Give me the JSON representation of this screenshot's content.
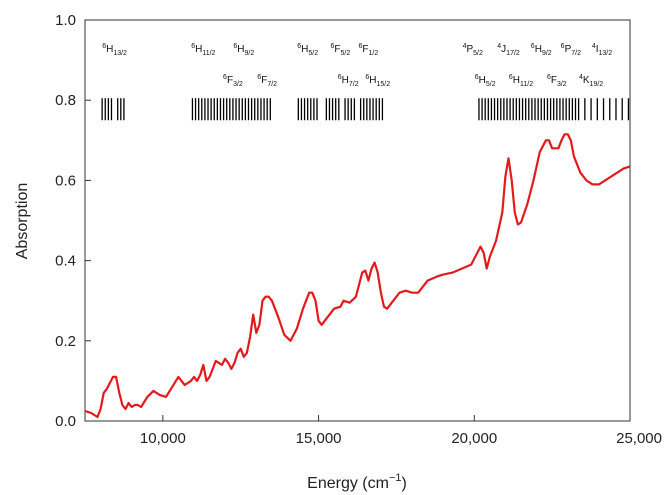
{
  "chart_data": {
    "type": "line",
    "xlabel": "Energy (cm",
    "xlabel_sup": "−1",
    "xlabel_end": ")",
    "ylabel": "Absorption",
    "xlim": [
      7500,
      25000
    ],
    "ylim": [
      0,
      1.0
    ],
    "x_ticks": [
      10000,
      15000,
      20000,
      25000
    ],
    "x_tick_labels": [
      "10,000",
      "15,000",
      "20,000",
      "25,000"
    ],
    "y_ticks": [
      0,
      0.2,
      0.4,
      0.6,
      0.8,
      1.0
    ],
    "y_tick_labels": [
      "0.0",
      "0.2",
      "0.4",
      "0.6",
      "0.8",
      "1.0"
    ],
    "line_color": "#e31a1c",
    "series": [
      {
        "x": [
          7500,
          7700,
          7900,
          8000,
          8100,
          8200,
          8300,
          8400,
          8500,
          8600,
          8700,
          8800,
          8900,
          9000,
          9100,
          9200,
          9300,
          9500,
          9700,
          9900,
          10100,
          10300,
          10500,
          10600,
          10700,
          10800,
          10900,
          11000,
          11100,
          11200,
          11300,
          11400,
          11500,
          11700,
          11900,
          12000,
          12100,
          12200,
          12300,
          12400,
          12500,
          12600,
          12700,
          12800,
          12900,
          13000,
          13100,
          13200,
          13300,
          13400,
          13500,
          13700,
          13900,
          14100,
          14300,
          14500,
          14700,
          14800,
          14900,
          15000,
          15100,
          15300,
          15500,
          15700,
          15800,
          16000,
          16200,
          16400,
          16500,
          16600,
          16700,
          16800,
          16900,
          17000,
          17100,
          17200,
          17400,
          17600,
          17800,
          18000,
          18200,
          18500,
          18800,
          19000,
          19300,
          19600,
          19900,
          20100,
          20200,
          20300,
          20400,
          20500,
          20700,
          20900,
          21000,
          21100,
          21200,
          21300,
          21400,
          21500,
          21700,
          21900,
          22100,
          22300,
          22400,
          22500,
          22700,
          22800,
          22900,
          23000,
          23100,
          23200,
          23400,
          23600,
          23800,
          24000,
          24200,
          24500,
          24800,
          25000
        ],
        "values": [
          0.025,
          0.02,
          0.01,
          0.03,
          0.07,
          0.08,
          0.095,
          0.11,
          0.11,
          0.07,
          0.04,
          0.03,
          0.045,
          0.035,
          0.04,
          0.04,
          0.035,
          0.06,
          0.075,
          0.065,
          0.06,
          0.085,
          0.11,
          0.1,
          0.09,
          0.095,
          0.1,
          0.11,
          0.1,
          0.115,
          0.14,
          0.1,
          0.11,
          0.15,
          0.14,
          0.155,
          0.145,
          0.13,
          0.145,
          0.17,
          0.18,
          0.16,
          0.17,
          0.21,
          0.265,
          0.22,
          0.24,
          0.3,
          0.31,
          0.31,
          0.3,
          0.26,
          0.215,
          0.2,
          0.23,
          0.28,
          0.32,
          0.32,
          0.3,
          0.25,
          0.24,
          0.26,
          0.28,
          0.285,
          0.3,
          0.295,
          0.31,
          0.37,
          0.375,
          0.35,
          0.38,
          0.395,
          0.37,
          0.32,
          0.285,
          0.28,
          0.3,
          0.32,
          0.325,
          0.32,
          0.32,
          0.35,
          0.36,
          0.365,
          0.37,
          0.38,
          0.39,
          0.42,
          0.435,
          0.42,
          0.38,
          0.41,
          0.45,
          0.52,
          0.61,
          0.655,
          0.6,
          0.52,
          0.49,
          0.495,
          0.54,
          0.6,
          0.67,
          0.7,
          0.7,
          0.68,
          0.68,
          0.7,
          0.715,
          0.715,
          0.7,
          0.66,
          0.62,
          0.6,
          0.59,
          0.59,
          0.6,
          0.615,
          0.63,
          0.635
        ]
      }
    ],
    "tick_band": {
      "y_range": [
        0.75,
        0.805
      ],
      "lines_x": [
        8050,
        8150,
        8250,
        8350,
        8550,
        8650,
        8750,
        10950,
        11050,
        11150,
        11250,
        11350,
        11450,
        11550,
        11650,
        11750,
        11850,
        11950,
        12050,
        12150,
        12250,
        12350,
        12450,
        12550,
        12650,
        12750,
        12850,
        12950,
        13050,
        13150,
        13250,
        13350,
        13450,
        14350,
        14450,
        14550,
        14650,
        14750,
        14850,
        14950,
        15250,
        15350,
        15450,
        15550,
        15650,
        15850,
        15950,
        16050,
        16150,
        16350,
        16450,
        16550,
        16650,
        16750,
        16850,
        16950,
        17050,
        20150,
        20250,
        20350,
        20450,
        20550,
        20650,
        20750,
        20850,
        20950,
        21050,
        21150,
        21250,
        21350,
        21450,
        21550,
        21650,
        21750,
        21850,
        21950,
        22050,
        22150,
        22250,
        22350,
        22450,
        22550,
        22650,
        22750,
        22850,
        22950,
        23050,
        23150,
        23250,
        23350,
        23550,
        23750,
        23950,
        24150,
        24350,
        24550,
        24750,
        24950
      ]
    },
    "term_labels": [
      {
        "sup": "6",
        "base": "H",
        "sub": "13/2",
        "x": 8450,
        "row": 1
      },
      {
        "sup": "6",
        "base": "H",
        "sub": "11/2",
        "x": 11300,
        "row": 1
      },
      {
        "sup": "6",
        "base": "H",
        "sub": "9/2",
        "x": 12600,
        "row": 1
      },
      {
        "sup": "6",
        "base": "F",
        "sub": "3/2",
        "x": 12250,
        "row": 2
      },
      {
        "sup": "6",
        "base": "F",
        "sub": "7/2",
        "x": 13350,
        "row": 2
      },
      {
        "sup": "6",
        "base": "H",
        "sub": "5/2",
        "x": 14650,
        "row": 1
      },
      {
        "sup": "6",
        "base": "F",
        "sub": "5/2",
        "x": 15700,
        "row": 1
      },
      {
        "sup": "6",
        "base": "F",
        "sub": "1/2",
        "x": 16600,
        "row": 1
      },
      {
        "sup": "6",
        "base": "H",
        "sub": "7/2",
        "x": 15950,
        "row": 2
      },
      {
        "sup": "6",
        "base": "H",
        "sub": "15/2",
        "x": 16900,
        "row": 2
      },
      {
        "sup": "4",
        "base": "P",
        "sub": "5/2",
        "x": 19950,
        "row": 1
      },
      {
        "sup": "4",
        "base": "J",
        "sub": "17/2",
        "x": 21100,
        "row": 1
      },
      {
        "sup": "6",
        "base": "H",
        "sub": "9/2",
        "x": 22150,
        "row": 1
      },
      {
        "sup": "6",
        "base": "P",
        "sub": "7/2",
        "x": 23100,
        "row": 1
      },
      {
        "sup": "4",
        "base": "I",
        "sub": "13/2",
        "x": 24100,
        "row": 1
      },
      {
        "sup": "6",
        "base": "H",
        "sub": "5/2",
        "x": 20350,
        "row": 2
      },
      {
        "sup": "6",
        "base": "H",
        "sub": "11/2",
        "x": 21500,
        "row": 2
      },
      {
        "sup": "6",
        "base": "F",
        "sub": "3/2",
        "x": 22650,
        "row": 2
      },
      {
        "sup": "4",
        "base": "K",
        "sub": "19/2",
        "x": 23750,
        "row": 2
      }
    ]
  }
}
